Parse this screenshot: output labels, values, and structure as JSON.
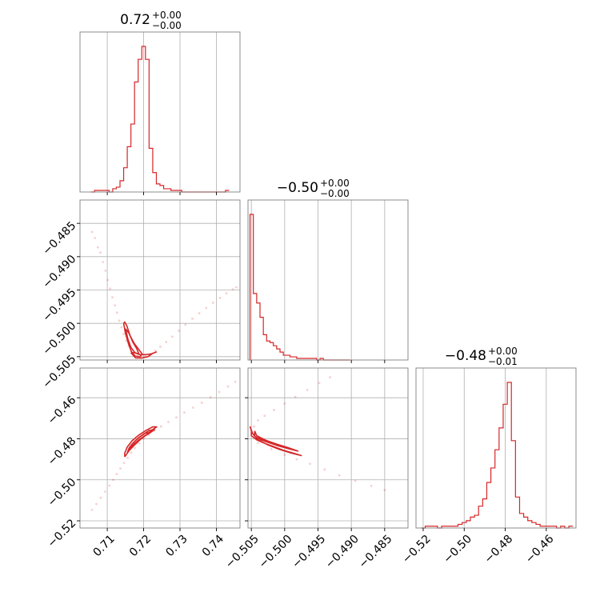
{
  "chart_data": {
    "type": "corner",
    "color": "#d62728",
    "parameters": [
      {
        "title": {
          "median": "0.72",
          "upper": "+0.00",
          "lower": "−0.00"
        },
        "ticks": [
          0.71,
          0.72,
          0.73,
          0.74
        ],
        "tick_labels": [
          "0.71",
          "0.72",
          "0.73",
          "0.74"
        ],
        "range": [
          0.7025,
          0.7465
        ]
      },
      {
        "title": {
          "median": "−0.50",
          "upper": "+0.00",
          "lower": "−0.00"
        },
        "ticks": [
          -0.505,
          -0.5,
          -0.495,
          -0.49,
          -0.485
        ],
        "tick_labels": [
          "−0.505",
          "−0.500",
          "−0.495",
          "−0.490",
          "−0.485"
        ],
        "range": [
          -0.5055,
          -0.4815
        ]
      },
      {
        "title": {
          "median": "−0.48",
          "upper": "+0.00",
          "lower": "−0.01"
        },
        "ticks": [
          -0.52,
          -0.5,
          -0.48,
          -0.46
        ],
        "tick_labels": [
          "−0.52",
          "−0.50",
          "−0.48",
          "−0.46"
        ],
        "range": [
          -0.5235,
          -0.4455
        ]
      }
    ],
    "histograms": [
      {
        "param": 0,
        "bin_edges": [
          0.7055,
          0.7065,
          0.7075,
          0.7085,
          0.7095,
          0.7105,
          0.7115,
          0.7125,
          0.7135,
          0.7145,
          0.7155,
          0.7165,
          0.7175,
          0.7185,
          0.7195,
          0.7205,
          0.7215,
          0.7225,
          0.7235,
          0.7245,
          0.7255,
          0.7265,
          0.7275,
          0.7285,
          0.7295,
          0.7305,
          0.7315,
          0.7325,
          0.7335,
          0.7345,
          0.7355,
          0.7365,
          0.7375,
          0.7385,
          0.7395,
          0.7405,
          0.7415,
          0.7425,
          0.7435
        ],
        "counts": [
          0,
          1,
          1,
          1,
          1,
          0,
          2,
          3,
          7,
          15,
          28,
          42,
          68,
          82,
          90,
          82,
          27,
          12,
          5,
          4,
          2,
          2,
          1,
          1,
          1,
          0,
          0,
          0,
          0,
          0,
          0,
          0,
          0,
          0,
          0,
          0,
          0,
          1
        ]
      },
      {
        "param": 1,
        "bin_edges": [
          -0.5052,
          -0.5047,
          -0.5042,
          -0.5037,
          -0.5032,
          -0.5027,
          -0.5022,
          -0.5017,
          -0.5012,
          -0.5007,
          -0.5002,
          -0.4997,
          -0.4992,
          -0.4987,
          -0.4982,
          -0.4977,
          -0.4972,
          -0.4967,
          -0.4962,
          -0.4957,
          -0.4952,
          -0.4947,
          -0.4942,
          -0.4937,
          -0.4932,
          -0.4927,
          -0.4922,
          -0.4917,
          -0.4912,
          -0.4907,
          -0.4902
        ],
        "counts": [
          92,
          42,
          36,
          27,
          16,
          12,
          11,
          9,
          7,
          5,
          3,
          3,
          2,
          2,
          1,
          1,
          1,
          1,
          1,
          1,
          0,
          1,
          0,
          0,
          0,
          0,
          0,
          0,
          0,
          0
        ]
      },
      {
        "param": 2,
        "bin_edges": [
          -0.521,
          -0.519,
          -0.517,
          -0.515,
          -0.513,
          -0.511,
          -0.509,
          -0.507,
          -0.505,
          -0.503,
          -0.501,
          -0.499,
          -0.497,
          -0.495,
          -0.493,
          -0.491,
          -0.489,
          -0.487,
          -0.485,
          -0.483,
          -0.481,
          -0.479,
          -0.477,
          -0.475,
          -0.473,
          -0.471,
          -0.469,
          -0.467,
          -0.465,
          -0.463,
          -0.461,
          -0.459,
          -0.457,
          -0.455,
          -0.453,
          -0.451,
          -0.449,
          -0.447
        ],
        "counts": [
          0,
          1,
          1,
          1,
          0,
          1,
          1,
          1,
          1,
          2,
          3,
          4,
          6,
          7,
          12,
          16,
          25,
          33,
          43,
          55,
          68,
          80,
          48,
          17,
          8,
          6,
          4,
          3,
          2,
          1,
          1,
          1,
          1,
          0,
          1,
          0,
          1
        ]
      }
    ],
    "scatter_panels": [
      {
        "x_param": 0,
        "y_param": 1,
        "samples": [
          [
            0.7058,
            -0.4863
          ],
          [
            0.7066,
            -0.4872
          ],
          [
            0.7074,
            -0.4886
          ],
          [
            0.7081,
            -0.4894
          ],
          [
            0.7088,
            -0.4908
          ],
          [
            0.7095,
            -0.4921
          ],
          [
            0.7101,
            -0.4935
          ],
          [
            0.7108,
            -0.4948
          ],
          [
            0.7114,
            -0.4961
          ],
          [
            0.7121,
            -0.4973
          ],
          [
            0.7127,
            -0.4984
          ],
          [
            0.7133,
            -0.4996
          ],
          [
            0.7139,
            -0.5006
          ],
          [
            0.7145,
            -0.5016
          ],
          [
            0.7152,
            -0.5026
          ],
          [
            0.7159,
            -0.5034
          ],
          [
            0.7166,
            -0.5041
          ],
          [
            0.7174,
            -0.5047
          ],
          [
            0.7183,
            -0.5051
          ],
          [
            0.7193,
            -0.5052
          ],
          [
            0.7205,
            -0.505
          ],
          [
            0.7218,
            -0.5046
          ],
          [
            0.7232,
            -0.5041
          ],
          [
            0.7246,
            -0.5035
          ],
          [
            0.7262,
            -0.5028
          ],
          [
            0.7279,
            -0.502
          ],
          [
            0.7297,
            -0.5011
          ],
          [
            0.7315,
            -0.5002
          ],
          [
            0.7334,
            -0.4993
          ],
          [
            0.7353,
            -0.4985
          ],
          [
            0.7372,
            -0.4977
          ],
          [
            0.7391,
            -0.4969
          ],
          [
            0.741,
            -0.4962
          ],
          [
            0.7428,
            -0.4955
          ],
          [
            0.7445,
            -0.4949
          ],
          [
            0.7455,
            -0.4946
          ]
        ],
        "contours": [
          [
            [
              0.7145,
              -0.5
            ],
            [
              0.715,
              -0.5015
            ],
            [
              0.7158,
              -0.503
            ],
            [
              0.7166,
              -0.5042
            ],
            [
              0.7176,
              -0.5049
            ],
            [
              0.719,
              -0.505
            ],
            [
              0.7196,
              -0.5046
            ],
            [
              0.7185,
              -0.5038
            ],
            [
              0.7174,
              -0.503
            ],
            [
              0.7163,
              -0.5019
            ],
            [
              0.7154,
              -0.5004
            ],
            [
              0.7148,
              -0.4998
            ],
            [
              0.7145,
              -0.5
            ]
          ],
          [
            [
              0.715,
              -0.5008
            ],
            [
              0.7157,
              -0.5024
            ],
            [
              0.7165,
              -0.5036
            ],
            [
              0.7176,
              -0.5044
            ],
            [
              0.7187,
              -0.5046
            ],
            [
              0.7181,
              -0.5038
            ],
            [
              0.717,
              -0.5028
            ],
            [
              0.716,
              -0.5015
            ],
            [
              0.715,
              -0.5008
            ]
          ],
          [
            [
              0.7165,
              -0.5044
            ],
            [
              0.7178,
              -0.5052
            ],
            [
              0.7195,
              -0.5052
            ],
            [
              0.7212,
              -0.505
            ],
            [
              0.7225,
              -0.5045
            ],
            [
              0.7235,
              -0.5043
            ],
            [
              0.722,
              -0.5046
            ],
            [
              0.7205,
              -0.5047
            ],
            [
              0.719,
              -0.5047
            ],
            [
              0.7175,
              -0.5044
            ],
            [
              0.7165,
              -0.5044
            ]
          ]
        ]
      },
      {
        "x_param": 0,
        "y_param": 2,
        "samples": [
          [
            0.7058,
            -0.5147
          ],
          [
            0.707,
            -0.5118
          ],
          [
            0.7082,
            -0.5088
          ],
          [
            0.7094,
            -0.5058
          ],
          [
            0.7106,
            -0.5028
          ],
          [
            0.7116,
            -0.5
          ],
          [
            0.7126,
            -0.4972
          ],
          [
            0.7136,
            -0.4945
          ],
          [
            0.7146,
            -0.4918
          ],
          [
            0.7156,
            -0.4893
          ],
          [
            0.7166,
            -0.4868
          ],
          [
            0.7176,
            -0.4845
          ],
          [
            0.7188,
            -0.4822
          ],
          [
            0.72,
            -0.48
          ],
          [
            0.7214,
            -0.478
          ],
          [
            0.723,
            -0.476
          ],
          [
            0.7248,
            -0.474
          ],
          [
            0.7268,
            -0.4718
          ],
          [
            0.729,
            -0.4696
          ],
          [
            0.7312,
            -0.4672
          ],
          [
            0.7336,
            -0.4648
          ],
          [
            0.736,
            -0.4624
          ],
          [
            0.7384,
            -0.4598
          ],
          [
            0.7408,
            -0.4572
          ],
          [
            0.7432,
            -0.4545
          ],
          [
            0.7452,
            -0.4522
          ]
        ],
        "contours": [
          [
            [
              0.7148,
              -0.4888
            ],
            [
              0.716,
              -0.4858
            ],
            [
              0.7175,
              -0.483
            ],
            [
              0.719,
              -0.4805
            ],
            [
              0.7208,
              -0.478
            ],
            [
              0.7225,
              -0.4755
            ],
            [
              0.7236,
              -0.4742
            ],
            [
              0.7225,
              -0.4742
            ],
            [
              0.7206,
              -0.476
            ],
            [
              0.7186,
              -0.4783
            ],
            [
              0.7168,
              -0.481
            ],
            [
              0.7155,
              -0.484
            ],
            [
              0.7148,
              -0.487
            ],
            [
              0.7148,
              -0.4888
            ]
          ],
          [
            [
              0.7155,
              -0.4868
            ],
            [
              0.7168,
              -0.4838
            ],
            [
              0.7183,
              -0.4811
            ],
            [
              0.72,
              -0.4789
            ],
            [
              0.7216,
              -0.477
            ],
            [
              0.7205,
              -0.4772
            ],
            [
              0.7188,
              -0.4792
            ],
            [
              0.7172,
              -0.4818
            ],
            [
              0.716,
              -0.4845
            ],
            [
              0.7155,
              -0.4868
            ]
          ],
          [
            [
              0.716,
              -0.485
            ],
            [
              0.7176,
              -0.4822
            ],
            [
              0.7195,
              -0.4795
            ],
            [
              0.7215,
              -0.4774
            ],
            [
              0.723,
              -0.4755
            ],
            [
              0.7215,
              -0.476
            ],
            [
              0.7196,
              -0.4782
            ],
            [
              0.7178,
              -0.4808
            ],
            [
              0.7165,
              -0.4832
            ],
            [
              0.716,
              -0.485
            ]
          ]
        ]
      },
      {
        "x_param": 1,
        "y_param": 2,
        "samples": [
          [
            -0.5046,
            -0.474
          ],
          [
            -0.504,
            -0.471
          ],
          [
            -0.503,
            -0.4688
          ],
          [
            -0.5016,
            -0.466
          ],
          [
            -0.5,
            -0.4628
          ],
          [
            -0.4984,
            -0.4596
          ],
          [
            -0.4966,
            -0.4562
          ],
          [
            -0.4948,
            -0.4528
          ],
          [
            -0.4932,
            -0.45
          ],
          [
            -0.504,
            -0.482
          ],
          [
            -0.502,
            -0.485
          ],
          [
            -0.5,
            -0.4878
          ],
          [
            -0.4982,
            -0.49
          ],
          [
            -0.4962,
            -0.4922
          ],
          [
            -0.494,
            -0.495
          ],
          [
            -0.4918,
            -0.4978
          ],
          [
            -0.4894,
            -0.5005
          ],
          [
            -0.487,
            -0.503
          ],
          [
            -0.485,
            -0.505
          ]
        ],
        "contours": [
          [
            [
              -0.5052,
              -0.474
            ],
            [
              -0.505,
              -0.476
            ],
            [
              -0.505,
              -0.4785
            ],
            [
              -0.5042,
              -0.4805
            ],
            [
              -0.503,
              -0.4822
            ],
            [
              -0.5015,
              -0.484
            ],
            [
              -0.5,
              -0.4858
            ],
            [
              -0.4985,
              -0.4872
            ],
            [
              -0.4975,
              -0.4882
            ],
            [
              -0.499,
              -0.487
            ],
            [
              -0.5008,
              -0.4852
            ],
            [
              -0.5025,
              -0.483
            ],
            [
              -0.504,
              -0.4805
            ],
            [
              -0.5048,
              -0.4775
            ],
            [
              -0.5052,
              -0.474
            ]
          ],
          [
            [
              -0.5045,
              -0.4762
            ],
            [
              -0.5045,
              -0.4788
            ],
            [
              -0.5035,
              -0.4806
            ],
            [
              -0.502,
              -0.4822
            ],
            [
              -0.5005,
              -0.4836
            ],
            [
              -0.5015,
              -0.4825
            ],
            [
              -0.503,
              -0.4805
            ],
            [
              -0.5042,
              -0.4785
            ],
            [
              -0.5045,
              -0.4762
            ]
          ],
          [
            [
              -0.504,
              -0.479
            ],
            [
              -0.5028,
              -0.4808
            ],
            [
              -0.5012,
              -0.4826
            ],
            [
              -0.4995,
              -0.4843
            ],
            [
              -0.498,
              -0.486
            ],
            [
              -0.4995,
              -0.4848
            ],
            [
              -0.5012,
              -0.4832
            ],
            [
              -0.503,
              -0.4812
            ],
            [
              -0.504,
              -0.479
            ]
          ]
        ]
      }
    ]
  }
}
